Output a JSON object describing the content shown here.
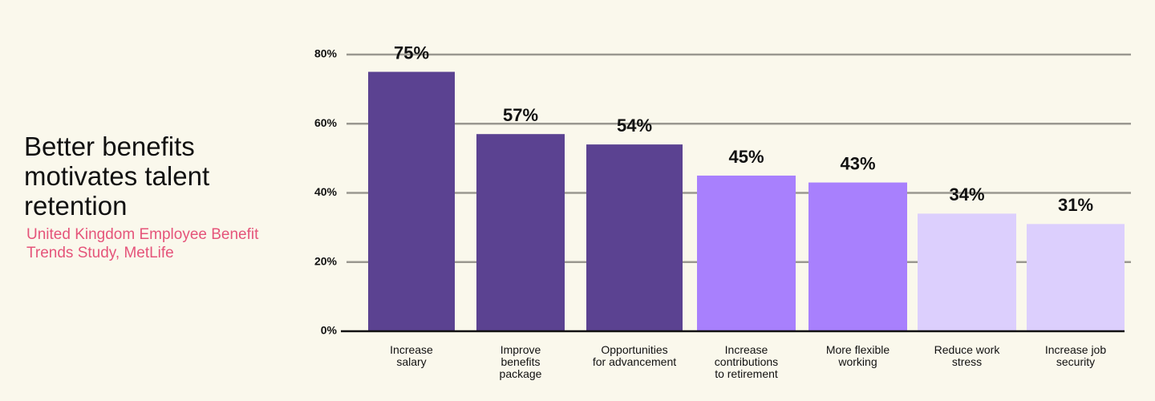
{
  "chart_data": {
    "type": "bar",
    "title": "Better benefits motivates talent retention",
    "subtitle": "United Kingdom Employee Benefit Trends Study, MetLife",
    "categories": [
      [
        "Increase",
        "salary"
      ],
      [
        "Improve",
        "benefits",
        "package"
      ],
      [
        "Opportunities",
        "for advancement"
      ],
      [
        "Increase",
        "contributions",
        "to retirement"
      ],
      [
        "More flexible",
        "working"
      ],
      [
        "Reduce work",
        "stress"
      ],
      [
        "Increase job",
        "security"
      ]
    ],
    "values": [
      75,
      57,
      54,
      45,
      43,
      34,
      31
    ],
    "value_labels": [
      "75%",
      "57%",
      "54%",
      "45%",
      "43%",
      "34%",
      "31%"
    ],
    "colors": [
      "#5b4291",
      "#5b4291",
      "#5b4291",
      "#a880fd",
      "#a880fd",
      "#dccffd",
      "#dccffd"
    ],
    "ylim": [
      0,
      80
    ],
    "yticks": [
      {
        "value": 0,
        "label": "0%"
      },
      {
        "value": 20,
        "label": "20%"
      },
      {
        "value": 40,
        "label": "40%"
      },
      {
        "value": 60,
        "label": "60%"
      },
      {
        "value": 80,
        "label": "80%"
      }
    ],
    "grid": true
  }
}
